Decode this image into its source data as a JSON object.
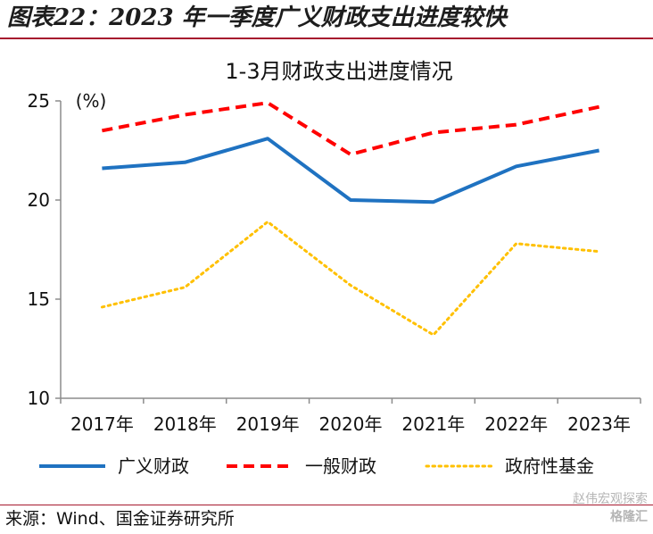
{
  "figure": {
    "title": "图表22：2023 年一季度广义财政支出进度较快",
    "source": "来源：Wind、国金证券研究所",
    "watermark_line1": "赵伟宏观探索",
    "watermark_line2": "格隆汇"
  },
  "chart_data": {
    "type": "line",
    "title": "1-3月财政支出进度情况",
    "ylabel": "(%)",
    "xlabel": "",
    "categories": [
      "2017年",
      "2018年",
      "2019年",
      "2020年",
      "2021年",
      "2022年",
      "2023年"
    ],
    "ylim": [
      10,
      25
    ],
    "yticks": [
      10,
      15,
      20,
      25
    ],
    "grid": false,
    "legend_position": "bottom",
    "series": [
      {
        "name": "广义财政",
        "values": [
          21.6,
          21.9,
          23.1,
          20.0,
          19.9,
          21.7,
          22.5
        ],
        "color": "#1f72c1",
        "style": "solid"
      },
      {
        "name": "一般财政",
        "values": [
          23.5,
          24.3,
          24.9,
          22.3,
          23.4,
          23.8,
          24.7
        ],
        "color": "#ff0000",
        "style": "dashed"
      },
      {
        "name": "政府性基金",
        "values": [
          14.6,
          15.6,
          18.9,
          15.7,
          13.2,
          17.8,
          17.4
        ],
        "color": "#ffc000",
        "style": "dotted"
      }
    ]
  }
}
